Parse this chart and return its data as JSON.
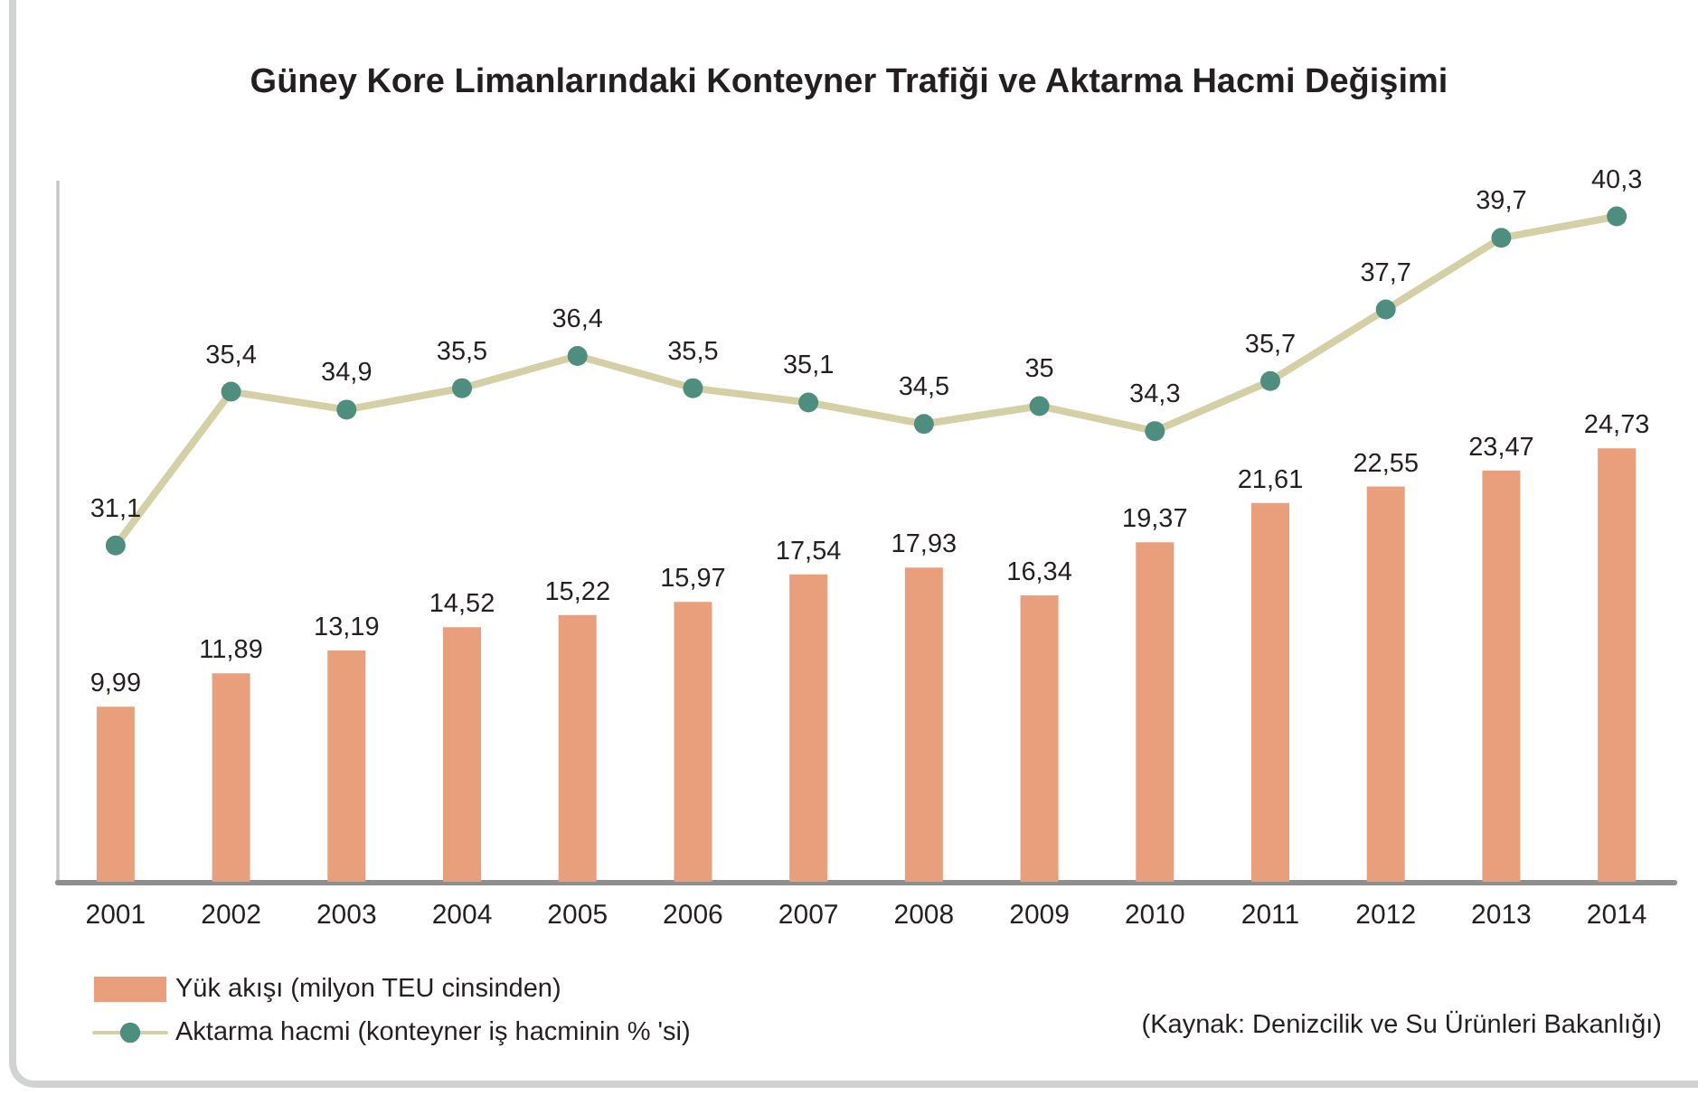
{
  "chart_data": {
    "type": "bar",
    "title": "Güney Kore Limanlarındaki Konteyner Trafiği ve Aktarma Hacmi Değişimi",
    "categories": [
      "2001",
      "2002",
      "2003",
      "2004",
      "2005",
      "2006",
      "2007",
      "2008",
      "2009",
      "2010",
      "2011",
      "2012",
      "2013",
      "2014"
    ],
    "series": [
      {
        "name": "Yük akışı (milyon TEU cinsinden)",
        "color": "#e99f7b",
        "values": [
          9.99,
          11.89,
          13.19,
          14.52,
          15.22,
          15.97,
          17.54,
          17.93,
          16.34,
          19.37,
          21.61,
          22.55,
          23.47,
          24.73
        ],
        "value_labels": [
          "9,99",
          "11,89",
          "13,19",
          "14,52",
          "15,22",
          "15,97",
          "17,54",
          "17,93",
          "16,34",
          "19,37",
          "21,61",
          "22,55",
          "23,47",
          "24,73"
        ]
      },
      {
        "name": "Aktarma hacmi (konteyner iş hacminin % 'si)",
        "type": "line",
        "axis": "y2",
        "color": "#d5cfa6",
        "values": [
          31.1,
          35.4,
          34.9,
          35.5,
          36.4,
          35.5,
          35.1,
          34.5,
          35,
          34.3,
          35.7,
          37.7,
          39.7,
          40.3
        ],
        "value_labels": [
          "31,1",
          "35,4",
          "34,9",
          "35,5",
          "36,4",
          "35,5",
          "35,1",
          "34,5",
          "35",
          "34,3",
          "35,7",
          "37,7",
          "39,7",
          "40,3"
        ]
      }
    ],
    "ylim": [
      0,
      40
    ],
    "y2lim": [
      21.7,
      41.3
    ],
    "tick_labels": "x",
    "marker": "circle",
    "legend": "bottom left",
    "annotations": [
      "(Kaynak: Denizcilik ve Su Ürünleri Bakanlığı)"
    ]
  }
}
